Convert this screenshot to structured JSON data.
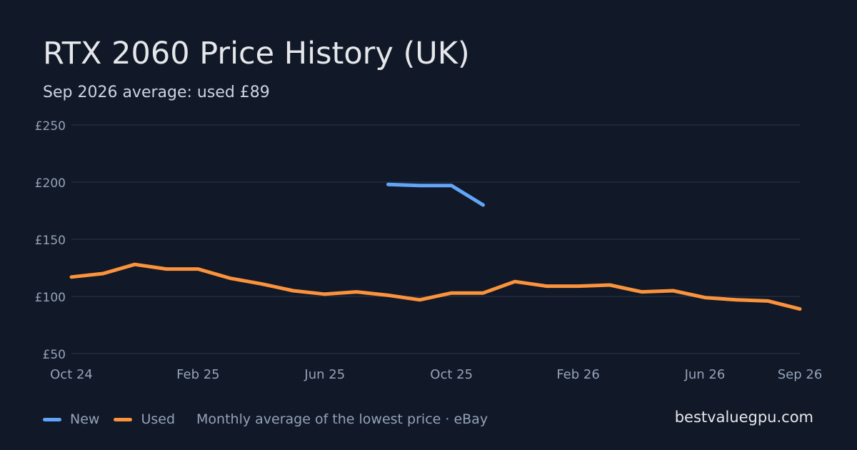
{
  "title": "RTX 2060 Price History (UK)",
  "subtitle": "Sep 2026 average: used £89",
  "brand": "bestvaluegpu.com",
  "legend": {
    "items": [
      {
        "label": "New",
        "color": "#60a5fa"
      },
      {
        "label": "Used",
        "color": "#fb923c"
      }
    ],
    "source": "Monthly average of the lowest price · eBay"
  },
  "chart_data": {
    "type": "line",
    "title": "RTX 2060 Price History (UK)",
    "subtitle": "Sep 2026 average: used £89",
    "xlabel": "",
    "ylabel": "",
    "x": [
      "2024-10",
      "2024-11",
      "2024-12",
      "2025-01",
      "2025-02",
      "2025-03",
      "2025-04",
      "2025-05",
      "2025-06",
      "2025-07",
      "2025-08",
      "2025-09",
      "2025-10",
      "2025-11",
      "2025-12",
      "2026-01",
      "2026-02",
      "2026-03",
      "2026-04",
      "2026-05",
      "2026-06",
      "2026-07",
      "2026-08",
      "2026-09"
    ],
    "x_tick_labels": [
      "Oct 24",
      "Feb 25",
      "Jun 25",
      "Oct 25",
      "Feb 26",
      "Jun 26",
      "Sep 26"
    ],
    "y_ticks": [
      50,
      100,
      150,
      200,
      250
    ],
    "y_tick_labels": [
      "£50",
      "£100",
      "£150",
      "£200",
      "£250"
    ],
    "ylim": [
      50,
      250
    ],
    "grid": true,
    "legend_position": "bottom-left",
    "series": [
      {
        "name": "New",
        "color": "#60a5fa",
        "values": [
          null,
          null,
          null,
          null,
          null,
          null,
          null,
          null,
          null,
          null,
          198,
          197,
          197,
          180,
          null,
          null,
          null,
          null,
          null,
          null,
          null,
          null,
          null,
          null
        ]
      },
      {
        "name": "Used",
        "color": "#fb923c",
        "values": [
          117,
          120,
          128,
          124,
          124,
          116,
          111,
          105,
          102,
          104,
          101,
          97,
          103,
          103,
          113,
          109,
          109,
          110,
          104,
          105,
          99,
          97,
          96,
          89
        ]
      }
    ]
  }
}
